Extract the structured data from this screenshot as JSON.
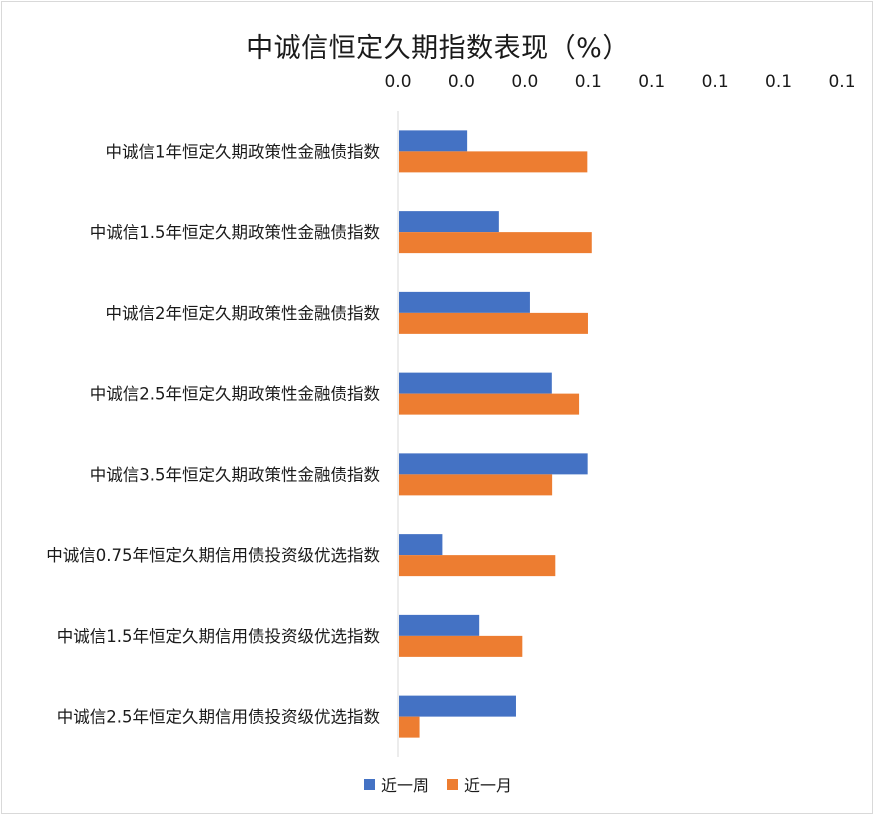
{
  "chart_data": {
    "type": "bar",
    "orientation": "horizontal",
    "title": "中诚信恒定久期指数表现（%）",
    "x_tick_labels": [
      "0.0",
      "0.0",
      "0.0",
      "0.1",
      "0.1",
      "0.1",
      "0.1",
      "0.1"
    ],
    "xlim": [
      0,
      0.14
    ],
    "categories": [
      "中诚信1年恒定久期政策性金融债指数",
      "中诚信1.5年恒定久期政策性金融债指数",
      "中诚信2年恒定久期政策性金融债指数",
      "中诚信2.5年恒定久期政策性金融债指数",
      "中诚信3.5年恒定久期政策性金融债指数",
      "中诚信0.75年恒定久期信用债投资级优选指数",
      "中诚信1.5年恒定久期信用债投资级优选指数",
      "中诚信2.5年恒定久期信用债投资级优选指数"
    ],
    "series": [
      {
        "name": "近一周",
        "color": "#4472c4",
        "values": [
          0.0218,
          0.0318,
          0.0416,
          0.0485,
          0.0598,
          0.014,
          0.0256,
          0.0372
        ]
      },
      {
        "name": "近一月",
        "color": "#ed7d31",
        "values": [
          0.0597,
          0.0611,
          0.0599,
          0.0571,
          0.0486,
          0.0496,
          0.0392,
          0.0068
        ]
      }
    ],
    "legend_position": "bottom",
    "grid": false
  }
}
